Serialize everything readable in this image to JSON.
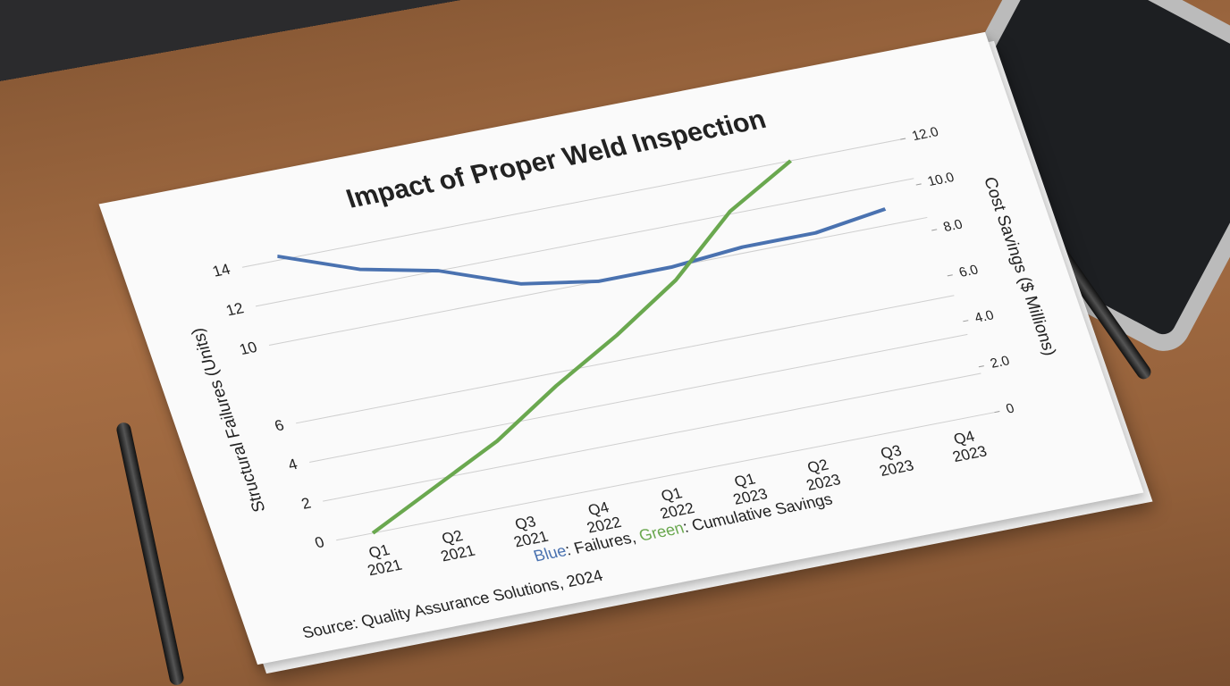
{
  "chart_data": {
    "type": "line",
    "title": "Impact of Proper Weld Inspection",
    "y_label": "Structural Failures (Units)",
    "y2_label": "Cost Savings ($ Millions)",
    "categories": [
      "Q1 2021",
      "Q2 2021",
      "Q3 2021",
      "Q4 2022",
      "Q1 2022",
      "Q1 2023",
      "Q2 2023",
      "Q3 2023",
      "Q4 2023"
    ],
    "series": [
      {
        "color": "#4a72b0",
        "values": [
          14.2,
          12.8,
          12.0,
          10.6,
          10.0,
          10.0,
          10.3,
          10.3,
          10.8
        ]
      },
      {
        "color": "#6aa84f",
        "axis": "y2",
        "values": [
          0,
          1.4,
          2.8,
          4.6,
          6.2,
          8.0,
          10.4,
          12.0,
          null
        ]
      }
    ],
    "legend": [
      "Blue",
      ": Failures, ",
      "Green",
      ": Cumulative Savings"
    ],
    "ylim": [
      0,
      14
    ],
    "yticks": [
      0,
      2,
      4,
      6,
      10,
      12,
      14
    ],
    "y2lim": [
      0,
      12
    ],
    "y2ticks": [
      0,
      {
        "value": 2,
        "label": "2.0"
      },
      {
        "value": 4,
        "label": "4.0"
      },
      {
        "value": 6,
        "label": "6.0"
      },
      {
        "value": 8,
        "label": "8.0"
      },
      {
        "value": 10,
        "label": "10.0"
      },
      {
        "value": 12,
        "label": "12.0"
      }
    ],
    "grid": true,
    "source": "Source: Quality Assurance Solutions, 2024"
  }
}
